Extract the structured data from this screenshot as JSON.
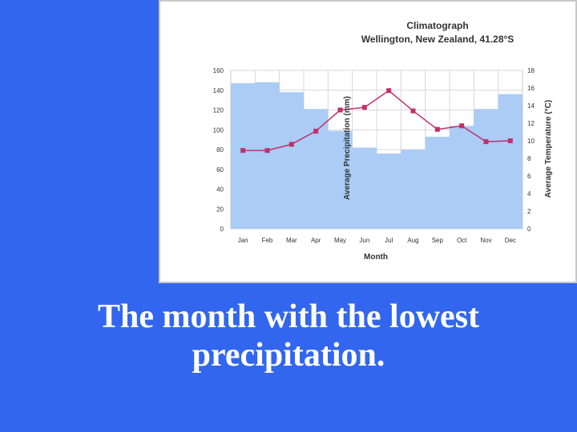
{
  "chart_data": {
    "type": "bar+line",
    "title": "Climatograph",
    "subtitle": "Wellington, New Zealand, 41.28°S",
    "xlabel": "Month",
    "ylabel_left": "Average Precipitation (mm)",
    "ylabel_right": "Average Temperature (°C)",
    "categories": [
      "Jan",
      "Feb",
      "Mar",
      "Apr",
      "May",
      "Jun",
      "Jul",
      "Aug",
      "Sep",
      "Oct",
      "Nov",
      "Dec"
    ],
    "ylim_left": [
      0,
      160
    ],
    "ylim_right": [
      0,
      18
    ],
    "yticks_left": [
      0,
      20,
      40,
      60,
      80,
      100,
      120,
      140,
      160
    ],
    "yticks_right": [
      0,
      2,
      4,
      6,
      8,
      10,
      12,
      14,
      16,
      18
    ],
    "grid": true,
    "precipitation": [
      147,
      148,
      138,
      121,
      99,
      82,
      76,
      80,
      93,
      104,
      121,
      136
    ],
    "temperature": [
      8.9,
      8.9,
      9.6,
      11.1,
      13.5,
      13.8,
      15.7,
      13.4,
      11.3,
      11.7,
      9.9,
      10.0
    ],
    "colors": {
      "bar": "#aaccf5",
      "line": "#c0306a",
      "grid": "#d8d8d8",
      "frame": "#c8c8c8"
    }
  },
  "caption": {
    "line1": "The month with the lowest",
    "line2": "precipitation."
  }
}
